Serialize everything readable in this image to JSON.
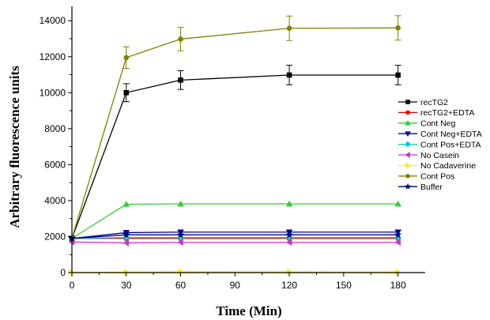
{
  "chart_data": {
    "type": "line",
    "title": "",
    "xlabel": "Time (Min)",
    "ylabel": "Arbitrary fluorescence units",
    "xlim": [
      0,
      195
    ],
    "ylim": [
      0,
      14800
    ],
    "x_ticks": [
      0,
      30,
      60,
      90,
      120,
      150,
      180
    ],
    "y_ticks": [
      0,
      2000,
      4000,
      6000,
      8000,
      10000,
      12000,
      14000
    ],
    "x_tick_labels": [
      "0",
      "30",
      "60",
      "90",
      "120",
      "150",
      "180"
    ],
    "y_tick_labels": [
      "0",
      "2000",
      "4000",
      "6000",
      "8000",
      "10000",
      "12000",
      "14000"
    ],
    "grid": false,
    "legend_position": "right",
    "x": [
      0,
      30,
      60,
      120,
      180
    ],
    "series": [
      {
        "name": "recTG2",
        "color": "#000000",
        "marker": "square",
        "values": [
          1900,
          10000,
          10700,
          10980,
          10980
        ],
        "error": [
          0,
          500,
          520,
          540,
          540
        ]
      },
      {
        "name": "recTG2+EDTA",
        "color": "#e00000",
        "marker": "circle",
        "values": [
          1900,
          1900,
          1900,
          1900,
          1900
        ],
        "error": [
          0,
          0,
          0,
          0,
          0
        ]
      },
      {
        "name": "Cont Neg",
        "color": "#33cc33",
        "marker": "triangle-up",
        "values": [
          1900,
          3800,
          3820,
          3820,
          3820
        ],
        "error": [
          0,
          0,
          0,
          0,
          0
        ]
      },
      {
        "name": "Cont Neg+EDTA",
        "color": "#000099",
        "marker": "triangle-down",
        "values": [
          1900,
          2220,
          2250,
          2250,
          2250
        ],
        "error": [
          0,
          0,
          0,
          0,
          0
        ]
      },
      {
        "name": "Cont Pos+EDTA",
        "color": "#00cccc",
        "marker": "diamond",
        "values": [
          1900,
          1950,
          1950,
          1950,
          1950
        ],
        "error": [
          0,
          0,
          0,
          0,
          0
        ]
      },
      {
        "name": "No Casein",
        "color": "#cc33cc",
        "marker": "triangle-left",
        "values": [
          1700,
          1650,
          1680,
          1680,
          1680
        ],
        "error": [
          0,
          0,
          0,
          0,
          0
        ]
      },
      {
        "name": "No Cadaverine",
        "color": "#ffee00",
        "marker": "triangle-right",
        "values": [
          10,
          20,
          50,
          40,
          30
        ],
        "error": [
          0,
          0,
          0,
          0,
          0
        ]
      },
      {
        "name": "Cont Pos",
        "color": "#808000",
        "marker": "circle",
        "values": [
          1900,
          11950,
          12980,
          13580,
          13600
        ],
        "error": [
          0,
          600,
          650,
          680,
          680
        ]
      },
      {
        "name": "Buffer",
        "color": "#000080",
        "marker": "star",
        "values": [
          1900,
          2100,
          2100,
          2100,
          2100
        ],
        "error": [
          0,
          0,
          0,
          0,
          0
        ]
      }
    ]
  }
}
